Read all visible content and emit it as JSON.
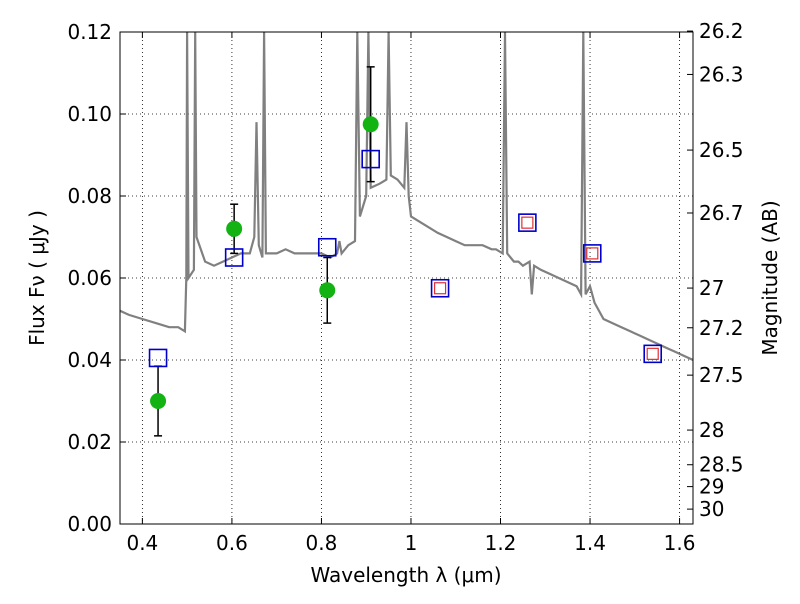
{
  "chart_data": {
    "type": "scatter",
    "xlabel": "Wavelength  λ (μm)",
    "ylabel": "Flux  Fν  ( μJy )",
    "y2label": "Magnitude (AB)",
    "xlim": [
      0.35,
      1.63
    ],
    "ylim": [
      0.0,
      0.12
    ],
    "grid": true,
    "grid_style": "dotted",
    "x_ticks": [
      0.4,
      0.6,
      0.8,
      1.0,
      1.2,
      1.4,
      1.6
    ],
    "x_tick_labels": [
      "0.4",
      "0.6",
      "0.8",
      "1",
      "1.2",
      "1.4",
      "1.6"
    ],
    "y_ticks": [
      0.0,
      0.02,
      0.04,
      0.06,
      0.08,
      0.1,
      0.12
    ],
    "y_tick_labels": [
      "0.00",
      "0.02",
      "0.04",
      "0.06",
      "0.08",
      "0.10",
      "0.12"
    ],
    "y2_tick_labels": [
      "26.2",
      "26.3",
      "26.5",
      "26.7",
      "27",
      "27.2",
      "27.5",
      "28",
      "28.5",
      "29",
      "30"
    ],
    "colors": {
      "spectrum": "#808080",
      "observed": "#12b312",
      "model_box": "#0000cc",
      "inner_box": "#e03030",
      "errorbar": "#000000"
    },
    "series": [
      {
        "kind": "line",
        "points": [
          [
            0.35,
            0.052
          ],
          [
            0.37,
            0.051
          ],
          [
            0.4,
            0.05
          ],
          [
            0.43,
            0.049
          ],
          [
            0.46,
            0.048
          ],
          [
            0.48,
            0.048
          ],
          [
            0.495,
            0.047
          ],
          [
            0.498,
            0.06
          ],
          [
            0.5,
            0.12
          ],
          [
            0.503,
            0.06
          ],
          [
            0.515,
            0.062
          ],
          [
            0.518,
            0.12
          ],
          [
            0.521,
            0.07
          ],
          [
            0.54,
            0.064
          ],
          [
            0.56,
            0.063
          ],
          [
            0.58,
            0.064
          ],
          [
            0.6,
            0.065
          ],
          [
            0.62,
            0.066
          ],
          [
            0.64,
            0.066
          ],
          [
            0.65,
            0.07
          ],
          [
            0.655,
            0.098
          ],
          [
            0.66,
            0.068
          ],
          [
            0.668,
            0.065
          ],
          [
            0.672,
            0.12
          ],
          [
            0.676,
            0.066
          ],
          [
            0.7,
            0.066
          ],
          [
            0.72,
            0.067
          ],
          [
            0.74,
            0.066
          ],
          [
            0.76,
            0.066
          ],
          [
            0.78,
            0.066
          ],
          [
            0.8,
            0.066
          ],
          [
            0.82,
            0.065
          ],
          [
            0.835,
            0.066
          ],
          [
            0.84,
            0.069
          ],
          [
            0.845,
            0.066
          ],
          [
            0.86,
            0.068
          ],
          [
            0.875,
            0.069
          ],
          [
            0.88,
            0.12
          ],
          [
            0.886,
            0.075
          ],
          [
            0.9,
            0.08
          ],
          [
            0.905,
            0.12
          ],
          [
            0.91,
            0.082
          ],
          [
            0.93,
            0.083
          ],
          [
            0.945,
            0.084
          ],
          [
            0.95,
            0.12
          ],
          [
            0.955,
            0.085
          ],
          [
            0.97,
            0.084
          ],
          [
            0.985,
            0.082
          ],
          [
            0.99,
            0.098
          ],
          [
            0.995,
            0.08
          ],
          [
            1.0,
            0.075
          ],
          [
            1.03,
            0.073
          ],
          [
            1.06,
            0.071
          ],
          [
            1.08,
            0.07
          ],
          [
            1.1,
            0.069
          ],
          [
            1.12,
            0.068
          ],
          [
            1.14,
            0.068
          ],
          [
            1.16,
            0.068
          ],
          [
            1.18,
            0.067
          ],
          [
            1.19,
            0.067
          ],
          [
            1.205,
            0.066
          ],
          [
            1.21,
            0.12
          ],
          [
            1.215,
            0.066
          ],
          [
            1.23,
            0.064
          ],
          [
            1.24,
            0.064
          ],
          [
            1.25,
            0.063
          ],
          [
            1.265,
            0.064
          ],
          [
            1.27,
            0.056
          ],
          [
            1.275,
            0.063
          ],
          [
            1.29,
            0.062
          ],
          [
            1.31,
            0.061
          ],
          [
            1.33,
            0.06
          ],
          [
            1.35,
            0.059
          ],
          [
            1.37,
            0.058
          ],
          [
            1.38,
            0.056
          ],
          [
            1.385,
            0.12
          ],
          [
            1.39,
            0.056
          ],
          [
            1.4,
            0.058
          ],
          [
            1.41,
            0.054
          ],
          [
            1.43,
            0.05
          ],
          [
            1.45,
            0.049
          ],
          [
            1.47,
            0.048
          ],
          [
            1.49,
            0.047
          ],
          [
            1.51,
            0.046
          ],
          [
            1.53,
            0.045
          ],
          [
            1.55,
            0.044
          ],
          [
            1.57,
            0.043
          ],
          [
            1.59,
            0.042
          ],
          [
            1.61,
            0.041
          ],
          [
            1.63,
            0.04
          ]
        ]
      },
      {
        "kind": "observed",
        "points": [
          {
            "x": 0.435,
            "y": 0.03,
            "err": 0.0085
          },
          {
            "x": 0.605,
            "y": 0.072,
            "err": 0.006
          },
          {
            "x": 0.813,
            "y": 0.057,
            "err": 0.008
          },
          {
            "x": 0.91,
            "y": 0.0975,
            "err": 0.014
          }
        ]
      },
      {
        "kind": "model",
        "points": [
          {
            "x": 0.435,
            "y": 0.0405,
            "inner": false
          },
          {
            "x": 0.605,
            "y": 0.065,
            "inner": false
          },
          {
            "x": 0.813,
            "y": 0.0675,
            "inner": false
          },
          {
            "x": 0.91,
            "y": 0.089,
            "inner": false
          },
          {
            "x": 1.065,
            "y": 0.0575,
            "inner": true
          },
          {
            "x": 1.26,
            "y": 0.0735,
            "inner": true
          },
          {
            "x": 1.405,
            "y": 0.066,
            "inner": true
          },
          {
            "x": 1.54,
            "y": 0.0415,
            "inner": true
          }
        ]
      }
    ]
  }
}
